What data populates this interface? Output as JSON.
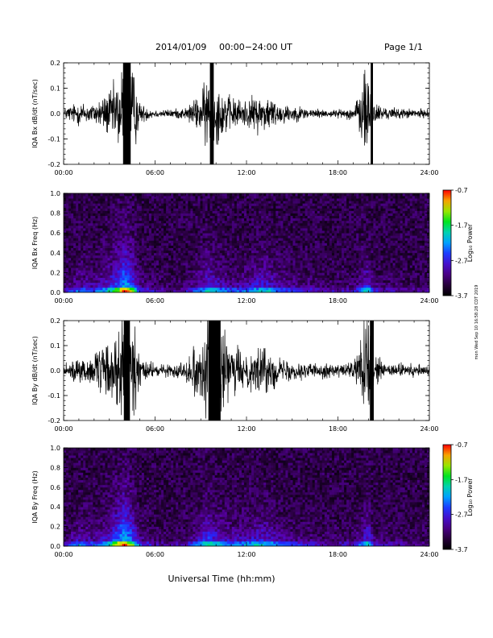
{
  "header": {
    "date": "2014/01/09",
    "range": "00:00−24:00 UT",
    "page": "Page 1/1"
  },
  "side_stamp": "mon Wed Sep 10 16:58:28 CDT 2019",
  "xlabel": "Universal Time (hh:mm)",
  "chart_data": [
    {
      "type": "line",
      "ylabel": "IQA Bx dB/dt (nT/sec)",
      "xlim": [
        "00:00",
        "24:00"
      ],
      "ylim": [
        -0.2,
        0.2
      ],
      "x_ticks": [
        "00:00",
        "06:00",
        "12:00",
        "18:00",
        "24:00"
      ],
      "y_ticks": [
        "-0.2",
        "-0.1",
        "0.0",
        "0.1",
        "0.2"
      ],
      "y_tick_values": [
        -0.2,
        -0.1,
        0.0,
        0.1,
        0.2
      ],
      "activity_hours": [
        [
          0,
          0.03
        ],
        [
          1,
          0.06
        ],
        [
          2,
          0.05
        ],
        [
          3,
          0.12
        ],
        [
          3.5,
          0.16
        ],
        [
          4,
          0.3
        ],
        [
          4.5,
          0.25
        ],
        [
          5,
          0.05
        ],
        [
          6,
          0.02
        ],
        [
          7,
          0.02
        ],
        [
          8,
          0.03
        ],
        [
          9,
          0.1
        ],
        [
          9.5,
          0.2
        ],
        [
          10,
          0.15
        ],
        [
          11,
          0.08
        ],
        [
          12,
          0.07
        ],
        [
          13,
          0.1
        ],
        [
          13.5,
          0.09
        ],
        [
          14,
          0.06
        ],
        [
          15,
          0.04
        ],
        [
          16,
          0.03
        ],
        [
          17,
          0.02
        ],
        [
          18,
          0.02
        ],
        [
          19,
          0.03
        ],
        [
          20,
          0.25
        ],
        [
          20.4,
          0.06
        ],
        [
          21,
          0.03
        ],
        [
          24,
          0.02
        ]
      ]
    },
    {
      "type": "heatmap",
      "ylabel": "IQA Bx Freq (Hz)",
      "xlim": [
        "00:00",
        "24:00"
      ],
      "ylim": [
        0.0,
        1.0
      ],
      "x_ticks": [
        "00:00",
        "06:00",
        "12:00",
        "18:00",
        "24:00"
      ],
      "y_ticks": [
        "0.0",
        "0.2",
        "0.4",
        "0.6",
        "0.8",
        "1.0"
      ],
      "y_tick_values": [
        0.0,
        0.2,
        0.4,
        0.6,
        0.8,
        1.0
      ],
      "colorbar": {
        "label": "Log₁₀ Power",
        "range": [
          -3.7,
          -0.7
        ],
        "ticks": [
          "-0.7",
          "-1.7",
          "-2.7",
          "-3.7"
        ]
      },
      "activity_hours": [
        [
          0,
          0.15
        ],
        [
          1,
          0.35
        ],
        [
          2,
          0.3
        ],
        [
          3,
          0.5
        ],
        [
          3.5,
          0.7
        ],
        [
          4,
          0.9
        ],
        [
          4.5,
          0.7
        ],
        [
          5,
          0.3
        ],
        [
          6,
          0.15
        ],
        [
          7,
          0.1
        ],
        [
          8,
          0.15
        ],
        [
          9,
          0.4
        ],
        [
          9.5,
          0.55
        ],
        [
          10,
          0.45
        ],
        [
          11,
          0.3
        ],
        [
          12,
          0.35
        ],
        [
          13,
          0.5
        ],
        [
          13.5,
          0.45
        ],
        [
          14,
          0.35
        ],
        [
          15,
          0.25
        ],
        [
          16,
          0.2
        ],
        [
          17,
          0.15
        ],
        [
          18,
          0.15
        ],
        [
          19,
          0.15
        ],
        [
          20,
          0.55
        ],
        [
          20.4,
          0.2
        ],
        [
          21,
          0.15
        ],
        [
          24,
          0.1
        ]
      ]
    },
    {
      "type": "line",
      "ylabel": "IQA By dB/dt (nT/sec)",
      "xlim": [
        "00:00",
        "24:00"
      ],
      "ylim": [
        -0.2,
        0.2
      ],
      "x_ticks": [
        "00:00",
        "06:00",
        "12:00",
        "18:00",
        "24:00"
      ],
      "y_ticks": [
        "-0.2",
        "-0.1",
        "0.0",
        "0.1",
        "0.2"
      ],
      "y_tick_values": [
        -0.2,
        -0.1,
        0.0,
        0.1,
        0.2
      ],
      "activity_hours": [
        [
          0,
          0.04
        ],
        [
          1,
          0.08
        ],
        [
          2,
          0.07
        ],
        [
          3,
          0.16
        ],
        [
          3.5,
          0.22
        ],
        [
          4,
          0.35
        ],
        [
          4.5,
          0.3
        ],
        [
          5,
          0.07
        ],
        [
          6,
          0.03
        ],
        [
          7,
          0.03
        ],
        [
          8,
          0.05
        ],
        [
          9,
          0.18
        ],
        [
          9.5,
          0.3
        ],
        [
          10,
          0.25
        ],
        [
          11,
          0.12
        ],
        [
          12,
          0.1
        ],
        [
          13,
          0.12
        ],
        [
          13.5,
          0.11
        ],
        [
          14,
          0.07
        ],
        [
          15,
          0.05
        ],
        [
          16,
          0.04
        ],
        [
          17,
          0.04
        ],
        [
          18,
          0.03
        ],
        [
          19,
          0.05
        ],
        [
          20,
          0.3
        ],
        [
          20.4,
          0.08
        ],
        [
          21,
          0.04
        ],
        [
          24,
          0.03
        ]
      ]
    },
    {
      "type": "heatmap",
      "ylabel": "IQA By Freq (Hz)",
      "xlim": [
        "00:00",
        "24:00"
      ],
      "ylim": [
        0.0,
        1.0
      ],
      "x_ticks": [
        "00:00",
        "06:00",
        "12:00",
        "18:00",
        "24:00"
      ],
      "y_ticks": [
        "0.0",
        "0.2",
        "0.4",
        "0.6",
        "0.8",
        "1.0"
      ],
      "y_tick_values": [
        0.0,
        0.2,
        0.4,
        0.6,
        0.8,
        1.0
      ],
      "colorbar": {
        "label": "Log₁₀ Power",
        "range": [
          -3.7,
          -0.7
        ],
        "ticks": [
          "-0.7",
          "-1.7",
          "-2.7",
          "-3.7"
        ]
      },
      "activity_hours": [
        [
          0,
          0.15
        ],
        [
          1,
          0.4
        ],
        [
          2,
          0.3
        ],
        [
          3,
          0.5
        ],
        [
          3.5,
          0.75
        ],
        [
          4,
          0.95
        ],
        [
          4.5,
          0.7
        ],
        [
          5,
          0.3
        ],
        [
          6,
          0.15
        ],
        [
          7,
          0.1
        ],
        [
          8,
          0.15
        ],
        [
          9,
          0.45
        ],
        [
          9.5,
          0.6
        ],
        [
          10,
          0.5
        ],
        [
          11,
          0.35
        ],
        [
          12,
          0.4
        ],
        [
          13,
          0.5
        ],
        [
          13.5,
          0.45
        ],
        [
          14,
          0.35
        ],
        [
          15,
          0.25
        ],
        [
          16,
          0.2
        ],
        [
          17,
          0.15
        ],
        [
          18,
          0.15
        ],
        [
          19,
          0.15
        ],
        [
          20,
          0.55
        ],
        [
          20.4,
          0.2
        ],
        [
          21,
          0.15
        ],
        [
          24,
          0.1
        ]
      ]
    }
  ]
}
